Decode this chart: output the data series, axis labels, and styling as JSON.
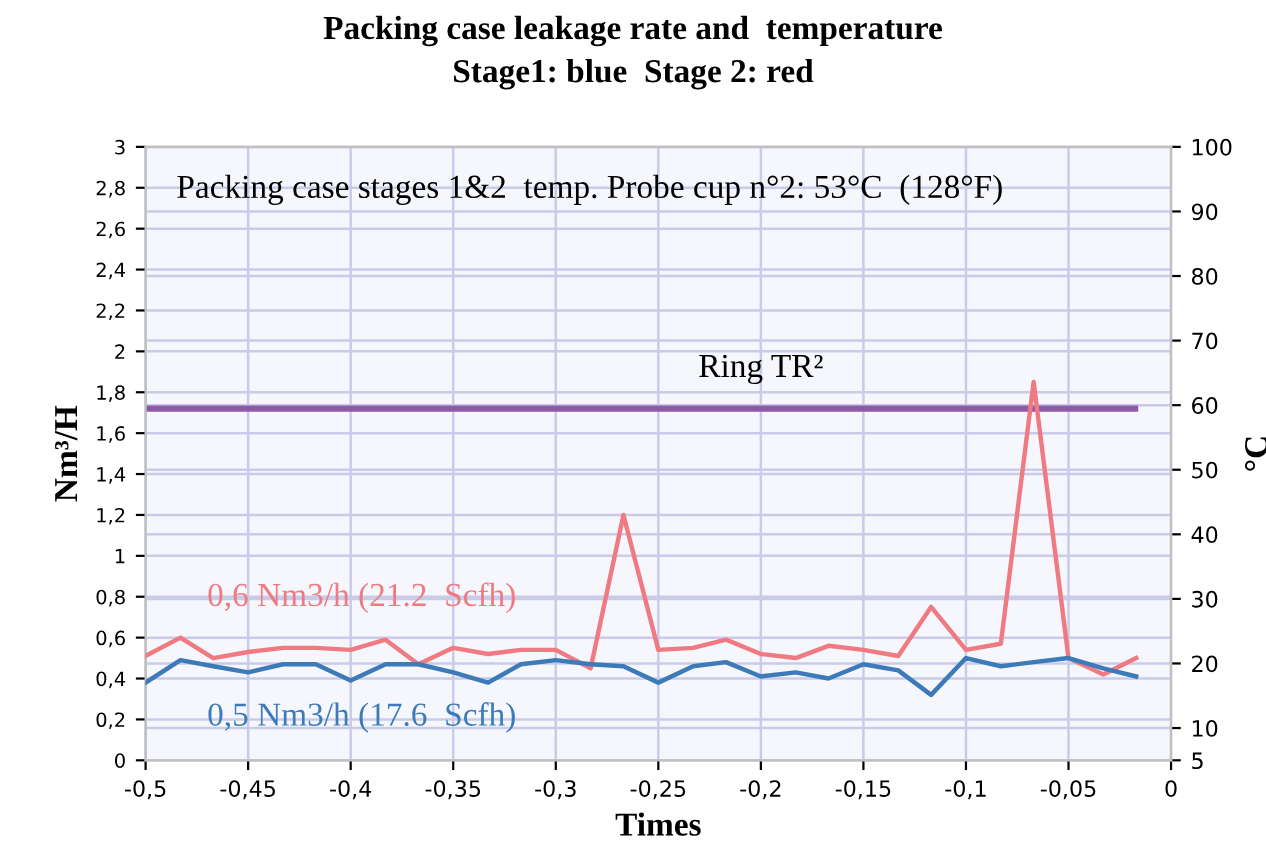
{
  "chart_data": {
    "type": "line",
    "title": "Packing case leakage rate and  temperature",
    "subtitle": "Stage1: blue  Stage 2: red",
    "xlabel": "Times",
    "ylabel": "Nm³/H",
    "y2label": "°C",
    "x": [
      -0.5,
      -0.483,
      -0.467,
      -0.45,
      -0.433,
      -0.417,
      -0.4,
      -0.383,
      -0.367,
      -0.35,
      -0.333,
      -0.317,
      -0.3,
      -0.283,
      -0.267,
      -0.25,
      -0.233,
      -0.217,
      -0.2,
      -0.183,
      -0.167,
      -0.15,
      -0.133,
      -0.117,
      -0.1,
      -0.083,
      -0.067,
      -0.05,
      -0.033,
      -0.017
    ],
    "series": [
      {
        "color": "#f07a82",
        "values": [
          0.51,
          0.6,
          0.5,
          0.53,
          0.55,
          0.55,
          0.54,
          0.59,
          0.47,
          0.55,
          0.52,
          0.54,
          0.54,
          0.45,
          1.2,
          0.54,
          0.55,
          0.59,
          0.52,
          0.5,
          0.56,
          0.54,
          0.51,
          0.75,
          0.54,
          0.57,
          1.85,
          0.5,
          0.42,
          0.5
        ]
      },
      {
        "color": "#3d7ab8",
        "values": [
          0.38,
          0.49,
          0.46,
          0.43,
          0.47,
          0.47,
          0.39,
          0.47,
          0.47,
          0.43,
          0.38,
          0.47,
          0.49,
          0.47,
          0.46,
          0.38,
          0.46,
          0.48,
          0.41,
          0.43,
          0.4,
          0.47,
          0.44,
          0.32,
          0.5,
          0.46,
          0.48,
          0.5,
          0.45,
          0.41
        ]
      }
    ],
    "ref_lines": [
      {
        "axis": "y",
        "value": 1.72,
        "label": "Ring TR²",
        "color": "#8e5aa8"
      }
    ],
    "annotations": [
      "Packing case stages 1&2  temp. Probe cup n°2: 53°C  (128°F)",
      "0,6 Nm3/h (21.2  Scfh)",
      "0,5 Nm3/h (17.6  Scfh)"
    ],
    "xlim": [
      -0.5,
      0
    ],
    "xticks": [
      {
        "value": -0.5,
        "label": "-0,5"
      },
      {
        "value": -0.45,
        "label": "-0,45"
      },
      {
        "value": -0.4,
        "label": "-0,4"
      },
      {
        "value": -0.35,
        "label": "-0,35"
      },
      {
        "value": -0.3,
        "label": "-0,3"
      },
      {
        "value": -0.25,
        "label": "-0,25"
      },
      {
        "value": -0.2,
        "label": "-0,2"
      },
      {
        "value": -0.15,
        "label": "-0,15"
      },
      {
        "value": -0.1,
        "label": "-0,1"
      },
      {
        "value": -0.05,
        "label": "-0,05"
      },
      0
    ],
    "ylim": [
      0,
      3
    ],
    "yticks": [
      0,
      {
        "value": 0.2,
        "label": "0,2"
      },
      {
        "value": 0.4,
        "label": "0,4"
      },
      {
        "value": 0.6,
        "label": "0,6"
      },
      {
        "value": 0.8,
        "label": "0,8"
      },
      1,
      {
        "value": 1.2,
        "label": "1,2"
      },
      {
        "value": 1.4,
        "label": "1,4"
      },
      {
        "value": 1.6,
        "label": "1,6"
      },
      {
        "value": 1.8,
        "label": "1,8"
      },
      2,
      {
        "value": 2.2,
        "label": "2,2"
      },
      {
        "value": 2.4,
        "label": "2,4"
      },
      {
        "value": 2.6,
        "label": "2,6"
      },
      {
        "value": 2.8,
        "label": "2,8"
      },
      3
    ],
    "y2lim": [
      5,
      100
    ],
    "y2ticks": [
      5,
      10,
      20,
      30,
      40,
      50,
      60,
      70,
      80,
      90,
      100
    ],
    "grid": true,
    "marker": "none",
    "line_style": "solid"
  }
}
